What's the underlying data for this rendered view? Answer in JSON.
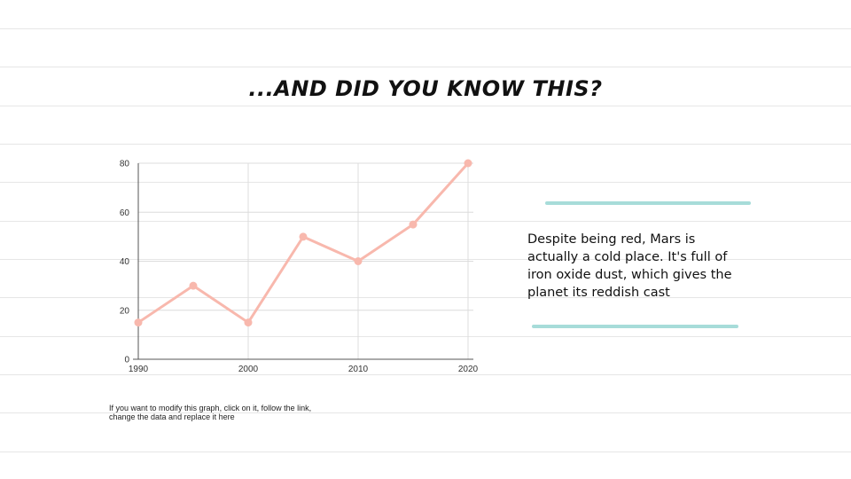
{
  "slide": {
    "title": "...AND DID YOU KNOW THIS?",
    "note_lines": [
      "If you want to modify this graph, click on it, follow the link,",
      "change the data and replace it here"
    ],
    "fact_lines": [
      "Despite being red, Mars is",
      "actually a cold place. It's full of",
      "iron oxide dust, which gives the",
      "planet its reddish cast"
    ],
    "colors": {
      "line": "#f8b8ad",
      "accent_brush": "#a7dcd9",
      "ruled_lines": "#e6e6e6"
    }
  },
  "chart_data": {
    "type": "line",
    "x": [
      1990,
      1995,
      2000,
      2005,
      2010,
      2015,
      2020
    ],
    "series": [
      {
        "values": [
          15,
          30,
          15,
          50,
          40,
          55,
          80
        ]
      }
    ],
    "xticks": [
      1990,
      2000,
      2010,
      2020
    ],
    "yticks": [
      0,
      20,
      40,
      60,
      80
    ],
    "xlim": [
      1990,
      2020
    ],
    "ylim": [
      0,
      80
    ],
    "grid": true,
    "legend": "none",
    "title": "",
    "xlabel": "",
    "ylabel": ""
  }
}
